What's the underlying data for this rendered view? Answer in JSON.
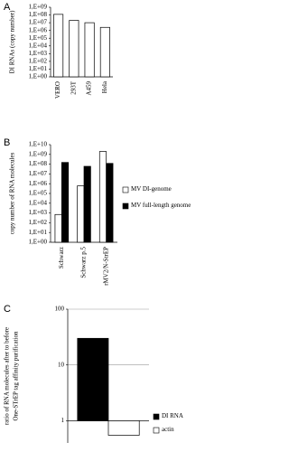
{
  "chart_data": [
    {
      "type": "bar",
      "label": "A",
      "y_label": [
        "DI RNAs (copy number)"
      ],
      "log_y": true,
      "categories": [
        "VERO",
        "293T",
        "A459",
        "Hela"
      ],
      "series": [
        {
          "name": null,
          "color": "#ffffff",
          "values": [
            120000000,
            20000000,
            10000000,
            2500000
          ]
        }
      ],
      "ylim": [
        1,
        1000000000
      ],
      "yticks": [
        {
          "value": 1,
          "label": "1,E+00"
        },
        {
          "value": 10,
          "label": "1,E+01"
        },
        {
          "value": 100,
          "label": "1,E+02"
        },
        {
          "value": 1000,
          "label": "1,E+03"
        },
        {
          "value": 10000,
          "label": "1,E+04"
        },
        {
          "value": 100000,
          "label": "1,E+05"
        },
        {
          "value": 1000000,
          "label": "1,E+06"
        },
        {
          "value": 10000000,
          "label": "1,E+07"
        },
        {
          "value": 100000000,
          "label": "1,E+08"
        },
        {
          "value": 1000000000,
          "label": "1,E+09"
        }
      ],
      "grid": false
    },
    {
      "type": "bar",
      "label": "B",
      "y_label": [
        "copy number of RNA molecules"
      ],
      "log_y": true,
      "categories": [
        "Schwarz",
        "Schwarz p.5",
        "rMV2/N-StrEP"
      ],
      "series": [
        {
          "name": "MV DI-genome",
          "color": "#ffffff",
          "values": [
            700,
            600000,
            2000000000
          ]
        },
        {
          "name": "MV full-length genome",
          "color": "#000000",
          "values": [
            150000000,
            60000000,
            120000000
          ]
        }
      ],
      "ylim": [
        1,
        10000000000
      ],
      "yticks": [
        {
          "value": 1,
          "label": "1,E+00"
        },
        {
          "value": 10,
          "label": "1,E+01"
        },
        {
          "value": 100,
          "label": "1,E+02"
        },
        {
          "value": 1000,
          "label": "1,E+03"
        },
        {
          "value": 10000,
          "label": "1,E+04"
        },
        {
          "value": 100000,
          "label": "1,E+05"
        },
        {
          "value": 1000000,
          "label": "1,E+06"
        },
        {
          "value": 10000000,
          "label": "1,E+07"
        },
        {
          "value": 100000000,
          "label": "1,E+08"
        },
        {
          "value": 1000000000,
          "label": "1,E+09"
        },
        {
          "value": 10000000000,
          "label": "1,E+10"
        }
      ],
      "grid": false
    },
    {
      "type": "bar",
      "label": "C",
      "y_label": [
        "ratio of RNA molecules  after to before",
        "One-STrEP tag affinity purification"
      ],
      "log_y": true,
      "categories": [
        null
      ],
      "series": [
        {
          "name": "DI RNA",
          "color": "#000000",
          "values": [
            30
          ]
        },
        {
          "name": "actin",
          "color": "#ffffff",
          "values": [
            0.55
          ]
        }
      ],
      "ylim": [
        0.4,
        100
      ],
      "yticks": [
        1,
        10,
        100
      ],
      "grid": true
    }
  ]
}
